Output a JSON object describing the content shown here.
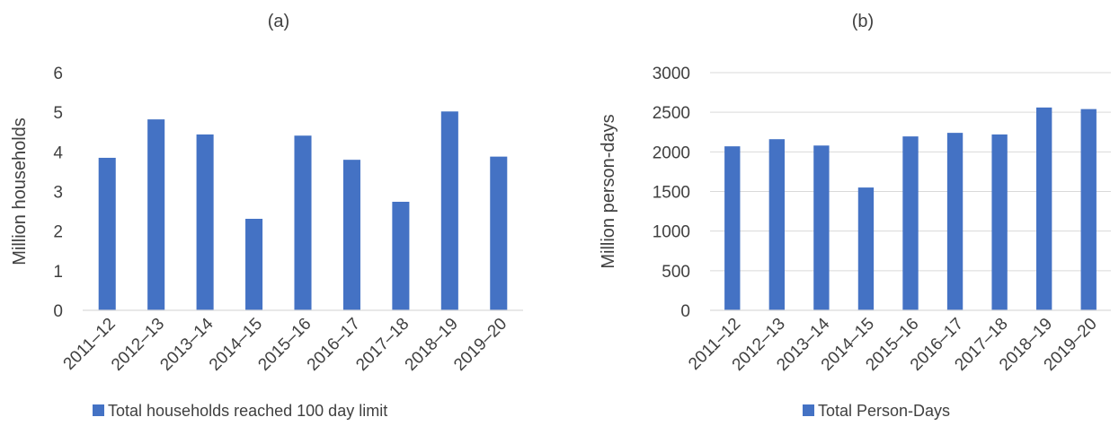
{
  "charts": [
    {
      "type": "bar",
      "title": "(a)",
      "ylabel": "Million households",
      "categories": [
        "2011–12",
        "2012–13",
        "2013–14",
        "2014–15",
        "2015–16",
        "2016–17",
        "2017–18",
        "2018–19",
        "2019–20"
      ],
      "series": [
        {
          "name": "Total households reached 100 day limit",
          "values": [
            3.85,
            4.82,
            4.44,
            2.31,
            4.41,
            3.8,
            2.74,
            5.02,
            3.88
          ]
        }
      ],
      "ylim": [
        0,
        6
      ],
      "yticks": [
        0,
        1,
        2,
        3,
        4,
        5,
        6
      ],
      "grid": false,
      "legend": "bottom",
      "bar_color": "#4472C4"
    },
    {
      "type": "bar",
      "title": "(b)",
      "ylabel": "Million person-days",
      "categories": [
        "2011–12",
        "2012–13",
        "2013–14",
        "2014–15",
        "2015–16",
        "2016–17",
        "2017–18",
        "2018–19",
        "2019–20"
      ],
      "series": [
        {
          "name": "Total Person-Days",
          "values": [
            2070,
            2160,
            2080,
            1550,
            2195,
            2240,
            2220,
            2560,
            2540
          ]
        }
      ],
      "ylim": [
        0,
        3000
      ],
      "yticks": [
        0,
        500,
        1000,
        1500,
        2000,
        2500,
        3000
      ],
      "grid": true,
      "legend": "bottom",
      "bar_color": "#4472C4"
    }
  ]
}
